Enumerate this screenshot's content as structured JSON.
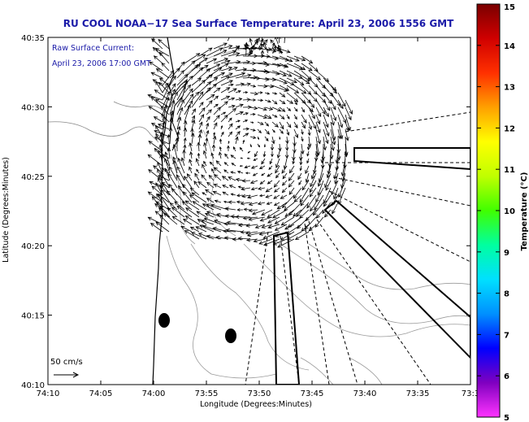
{
  "title": "RU COOL  NOAA−17  Sea Surface Temperature:  April 23, 2006 1556 GMT",
  "legend": {
    "line1": "Raw Surface Current:",
    "line2": "April 23, 2006 17:00 GMT",
    "scale_label": "50 cm/s"
  },
  "axes": {
    "xlabel": "Longitude (Degrees:Minutes)",
    "ylabel": "Latitude (Degrees:Minutes)",
    "xticks": [
      "74:10",
      "74:05",
      "74:00",
      "73:55",
      "73:50",
      "73:45",
      "73:40",
      "73:35",
      "73:3"
    ],
    "yticks": [
      "40:35",
      "40:30",
      "40:25",
      "40:20",
      "40:15",
      "40:10"
    ]
  },
  "colorbar": {
    "label": "Temperature (°C)",
    "ticks": [
      "15",
      "14",
      "13",
      "12",
      "11",
      "10",
      "9",
      "8",
      "7",
      "6",
      "5"
    ],
    "colors": [
      "#ff33ff",
      "#8000c0",
      "#0000ff",
      "#0090ff",
      "#00e0ff",
      "#00ffa0",
      "#40ff00",
      "#c0ff00",
      "#ffff00",
      "#ffa000",
      "#ff3000",
      "#d00000",
      "#7a0000"
    ]
  },
  "colors": {
    "title": "#1a1aa8",
    "contour": "#9a9a9a",
    "arrow": "#000000"
  }
}
